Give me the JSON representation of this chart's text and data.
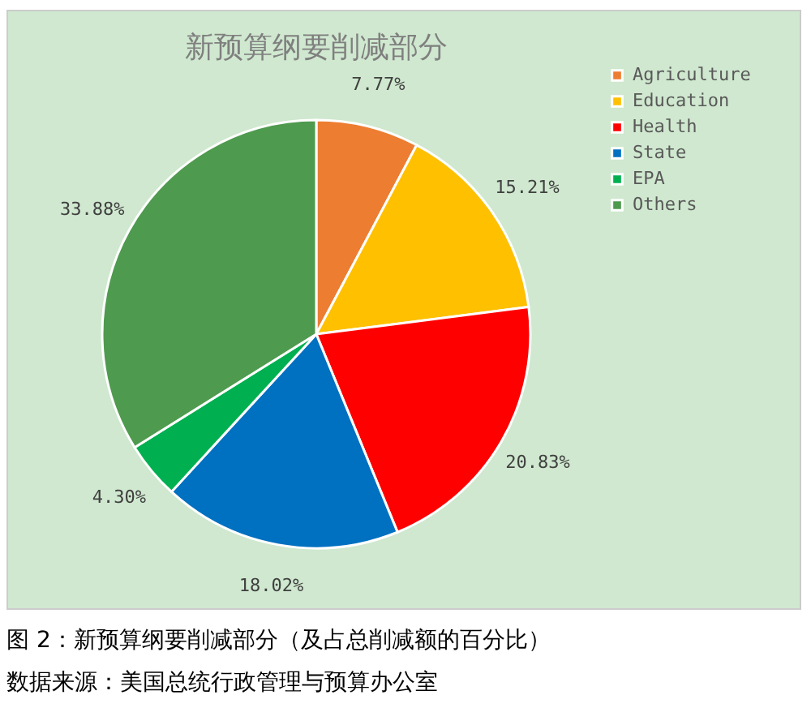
{
  "chart_data": {
    "type": "pie",
    "title": "新预算纲要削减部分",
    "categories": [
      "Agriculture",
      "Education",
      "Health",
      "State",
      "EPA",
      "Others"
    ],
    "values": [
      7.77,
      15.21,
      20.83,
      18.02,
      4.3,
      33.88
    ],
    "colors": [
      "#ed7d31",
      "#ffc000",
      "#ff0000",
      "#0070c0",
      "#00b050",
      "#4e9a4e"
    ],
    "value_labels": [
      "7.77%",
      "15.21%",
      "20.83%",
      "18.02%",
      "4.30%",
      "33.88%"
    ],
    "legend": "right",
    "annotations": [
      "图 2：新预算纲要削减部分（及占总削减额的百分比）",
      "数据来源：美国总统行政管理与预算办公室"
    ]
  }
}
